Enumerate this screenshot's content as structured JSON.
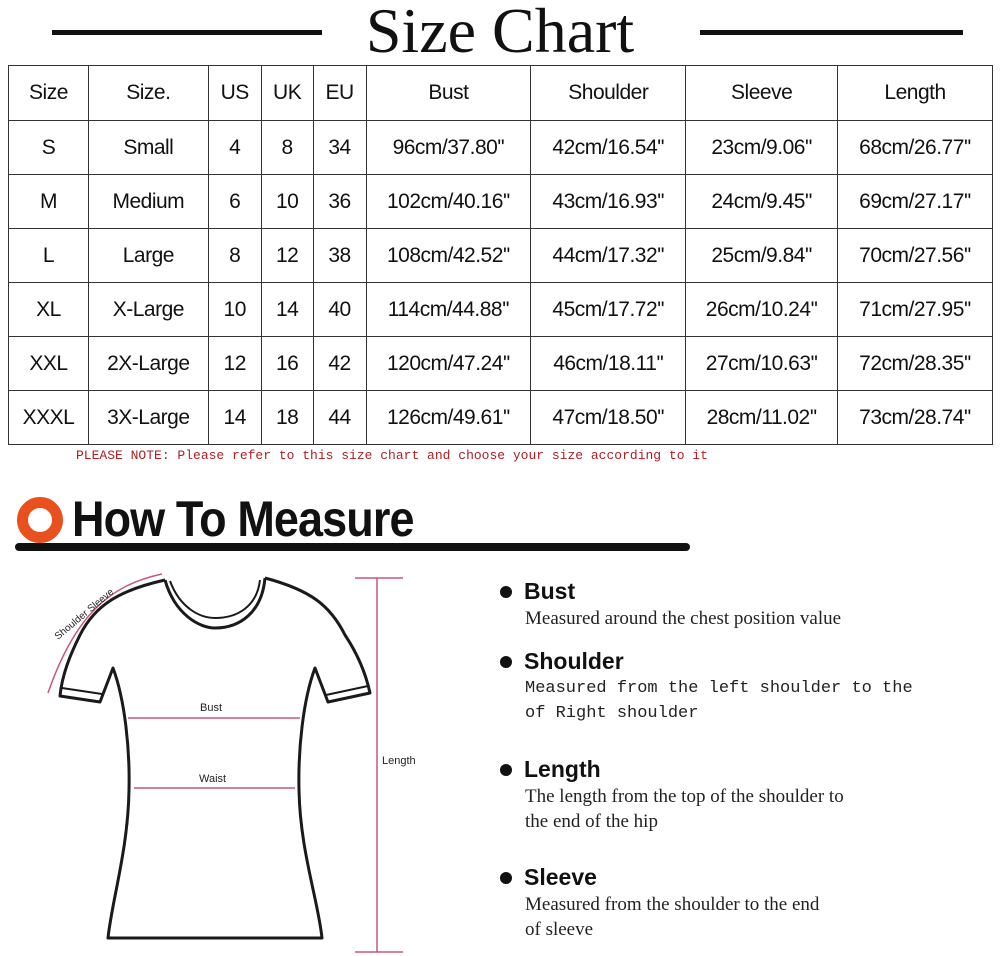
{
  "title": "Size Chart",
  "table": {
    "headers": [
      "Size",
      "Size.",
      "US",
      "UK",
      "EU",
      "Bust",
      "Shoulder",
      "Sleeve",
      "Length"
    ],
    "rows": [
      [
        "S",
        "Small",
        "4",
        "8",
        "34",
        "96cm/37.80''",
        "42cm/16.54''",
        "23cm/9.06''",
        "68cm/26.77''"
      ],
      [
        "M",
        "Medium",
        "6",
        "10",
        "36",
        "102cm/40.16''",
        "43cm/16.93''",
        "24cm/9.45''",
        "69cm/27.17''"
      ],
      [
        "L",
        "Large",
        "8",
        "12",
        "38",
        "108cm/42.52''",
        "44cm/17.32''",
        "25cm/9.84''",
        "70cm/27.56''"
      ],
      [
        "XL",
        "X-Large",
        "10",
        "14",
        "40",
        "114cm/44.88''",
        "45cm/17.72''",
        "26cm/10.24''",
        "71cm/27.95''"
      ],
      [
        "XXL",
        "2X-Large",
        "12",
        "16",
        "42",
        "120cm/47.24''",
        "46cm/18.11''",
        "27cm/10.63''",
        "72cm/28.35''"
      ],
      [
        "XXXL",
        "3X-Large",
        "14",
        "18",
        "44",
        "126cm/49.61''",
        "47cm/18.50''",
        "28cm/11.02''",
        "73cm/28.74''"
      ]
    ]
  },
  "note": "PLEASE NOTE: Please refer to this size chart and choose your size according to it",
  "how_to": {
    "title": "How To Measure",
    "diagram": {
      "shoulder_sleeve": "Shoulder Sleeve",
      "bust": "Bust",
      "waist": "Waist",
      "length": "Length"
    },
    "items": [
      {
        "title": "Bust",
        "lines": [
          "Measured around the chest position value"
        ]
      },
      {
        "title": "Shoulder",
        "lines": [
          "Measured from the left shoulder to the",
          "of Right shoulder"
        ]
      },
      {
        "title": "Length",
        "lines": [
          "The length from the top of the shoulder to",
          "the end of the hip"
        ]
      },
      {
        "title": "Sleeve",
        "lines": [
          "Measured from the shoulder to the end",
          "of sleeve"
        ]
      }
    ]
  },
  "colors": {
    "accent_orange": "#e8501e",
    "note_red": "#b01e24",
    "measure_pink": "#c8577a"
  }
}
